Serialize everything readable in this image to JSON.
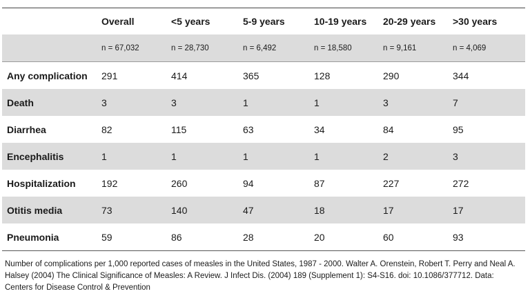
{
  "table": {
    "columns": [
      "",
      "Overall",
      "<5 years",
      "5-9 years",
      "10-19 years",
      "20-29 years",
      ">30 years"
    ],
    "counts": [
      "",
      "n = 67,032",
      "n = 28,730",
      "n = 6,492",
      "n = 18,580",
      "n = 9,161",
      "n = 4,069"
    ],
    "rows": [
      {
        "label": "Any complication",
        "values": [
          "291",
          "414",
          "365",
          "128",
          "290",
          "344"
        ]
      },
      {
        "label": "Death",
        "values": [
          "3",
          "3",
          "1",
          "1",
          "3",
          "7"
        ]
      },
      {
        "label": "Diarrhea",
        "values": [
          "82",
          "115",
          "63",
          "34",
          "84",
          "95"
        ]
      },
      {
        "label": "Encephalitis",
        "values": [
          "1",
          "1",
          "1",
          "1",
          "2",
          "3"
        ]
      },
      {
        "label": "Hospitalization",
        "values": [
          "192",
          "260",
          "94",
          "87",
          "227",
          "272"
        ]
      },
      {
        "label": "Otitis media",
        "values": [
          "73",
          "140",
          "47",
          "18",
          "17",
          "17"
        ]
      },
      {
        "label": "Pneumonia",
        "values": [
          "59",
          "86",
          "28",
          "20",
          "60",
          "93"
        ]
      }
    ]
  },
  "caption": "Number of complications per 1,000 reported cases of measles in the United States, 1987 - 2000.  Walter A. Orenstein, Robert T. Perry and Neal A. Halsey (2004) The Clinical Significance of Measles: A Review. J Infect Dis. (2004) 189 (Supplement 1): S4-S16. doi: 10.1086/377712.  Data: Centers for Disease Control & Prevention"
}
